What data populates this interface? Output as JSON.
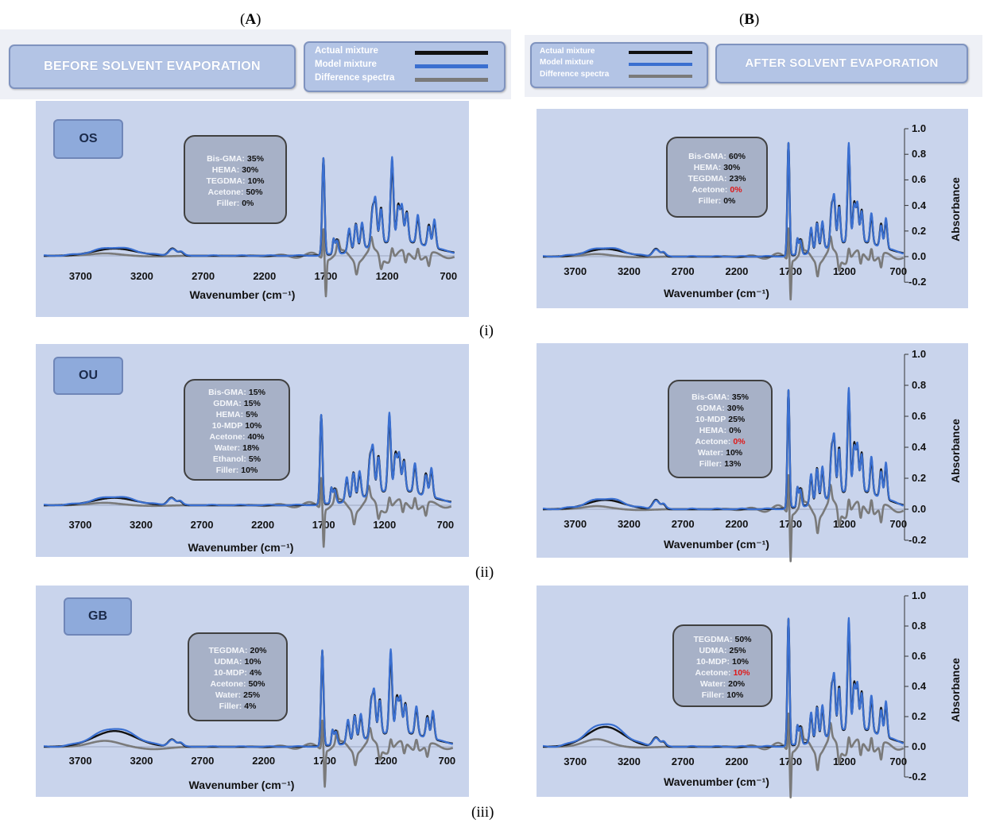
{
  "columns": [
    {
      "label": "(A)",
      "bold": "A"
    },
    {
      "label": "(B)",
      "bold": "B"
    }
  ],
  "rows": [
    "(i)",
    "(ii)",
    "(iii)"
  ],
  "headers": {
    "left_title": "BEFORE SOLVENT EVAPORATION",
    "right_title": "AFTER SOLVENT EVAPORATION"
  },
  "legend": [
    {
      "label": "Actual mixture",
      "color": "#111111"
    },
    {
      "label": "Model mixture",
      "color": "#3a6fd0"
    },
    {
      "label": "Difference spectra",
      "color": "#7a7a7a"
    }
  ],
  "x_axis_title": "Wavenumber (cm⁻¹)",
  "y_axis_title": "Absorbance",
  "x_ticks": [
    "3700",
    "3200",
    "2700",
    "2200",
    "1700",
    "1200",
    "700"
  ],
  "y_ticks": [
    "1.0",
    "0.8",
    "0.6",
    "0.4",
    "0.2",
    "0.0",
    "-0.2"
  ],
  "chart_data": [
    {
      "type": "line",
      "panel": "A-i",
      "tag": "OS",
      "xlabel": "Wavenumber (cm⁻¹)",
      "xlim": [
        4000,
        650
      ],
      "x_reversed": true,
      "series": [
        {
          "name": "Actual mixture"
        },
        {
          "name": "Model mixture"
        },
        {
          "name": "Difference spectra"
        }
      ],
      "composition": [
        [
          "Bis-GMA:",
          "35%"
        ],
        [
          "HEMA:",
          "30%"
        ],
        [
          "TEGDMA:",
          "10%"
        ],
        [
          "Acetone:",
          "50%"
        ],
        [
          "Filler:",
          "0%"
        ]
      ]
    },
    {
      "type": "line",
      "panel": "A-ii",
      "tag": "OU",
      "xlabel": "Wavenumber (cm⁻¹)",
      "xlim": [
        4000,
        650
      ],
      "x_reversed": true,
      "series": [
        {
          "name": "Actual mixture"
        },
        {
          "name": "Model mixture"
        },
        {
          "name": "Difference spectra"
        }
      ],
      "composition": [
        [
          "Bis-GMA:",
          "15%"
        ],
        [
          "GDMA:",
          "15%"
        ],
        [
          "HEMA:",
          "5%"
        ],
        [
          "10-MDP",
          "10%"
        ],
        [
          "Acetone:",
          "40%"
        ],
        [
          "Water:",
          "18%"
        ],
        [
          "Ethanol:",
          "5%"
        ],
        [
          "Filler:",
          "10%"
        ]
      ]
    },
    {
      "type": "line",
      "panel": "A-iii",
      "tag": "GB",
      "xlabel": "Wavenumber (cm⁻¹)",
      "xlim": [
        4000,
        650
      ],
      "x_reversed": true,
      "series": [
        {
          "name": "Actual mixture"
        },
        {
          "name": "Model mixture"
        },
        {
          "name": "Difference spectra"
        }
      ],
      "composition": [
        [
          "TEGDMA:",
          "20%"
        ],
        [
          "UDMA:",
          "10%"
        ],
        [
          "10-MDP:",
          "4%"
        ],
        [
          "Acetone:",
          "50%"
        ],
        [
          "Water:",
          "25%"
        ],
        [
          "Filler:",
          "4%"
        ]
      ]
    },
    {
      "type": "line",
      "panel": "B-i",
      "xlabel": "Wavenumber (cm⁻¹)",
      "ylabel": "Absorbance",
      "xlim": [
        4000,
        650
      ],
      "ylim": [
        -0.2,
        1.0
      ],
      "x_reversed": true,
      "series": [
        {
          "name": "Actual mixture"
        },
        {
          "name": "Model mixture"
        },
        {
          "name": "Difference spectra"
        }
      ],
      "composition": [
        [
          "Bis-GMA:",
          "60%"
        ],
        [
          "HEMA:",
          "30%"
        ],
        [
          "TEGDMA:",
          "23%"
        ],
        [
          "Acetone:",
          "0%",
          "red"
        ],
        [
          "Filler:",
          "0%"
        ]
      ]
    },
    {
      "type": "line",
      "panel": "B-ii",
      "xlabel": "Wavenumber (cm⁻¹)",
      "ylabel": "Absorbance",
      "xlim": [
        4000,
        650
      ],
      "ylim": [
        -0.2,
        1.0
      ],
      "x_reversed": true,
      "series": [
        {
          "name": "Actual mixture"
        },
        {
          "name": "Model mixture"
        },
        {
          "name": "Difference spectra"
        }
      ],
      "composition": [
        [
          "Bis-GMA:",
          "35%"
        ],
        [
          "GDMA:",
          "30%"
        ],
        [
          "10-MDP",
          "25%"
        ],
        [
          "HEMA:",
          "0%"
        ],
        [
          "Acetone:",
          "0%",
          "red"
        ],
        [
          "Water:",
          "10%"
        ],
        [
          "Filler:",
          "13%"
        ]
      ]
    },
    {
      "type": "line",
      "panel": "B-iii",
      "xlabel": "Wavenumber (cm⁻¹)",
      "ylabel": "Absorbance",
      "xlim": [
        4000,
        650
      ],
      "ylim": [
        -0.2,
        1.0
      ],
      "x_reversed": true,
      "series": [
        {
          "name": "Actual mixture"
        },
        {
          "name": "Model mixture"
        },
        {
          "name": "Difference spectra"
        }
      ],
      "composition": [
        [
          "TEGDMA:",
          "50%"
        ],
        [
          "UDMA:",
          "25%"
        ],
        [
          "10-MDP:",
          "10%"
        ],
        [
          "Acetone:",
          "10%",
          "red"
        ],
        [
          "Water:",
          "20%"
        ],
        [
          "Filler:",
          "10%"
        ]
      ]
    }
  ]
}
